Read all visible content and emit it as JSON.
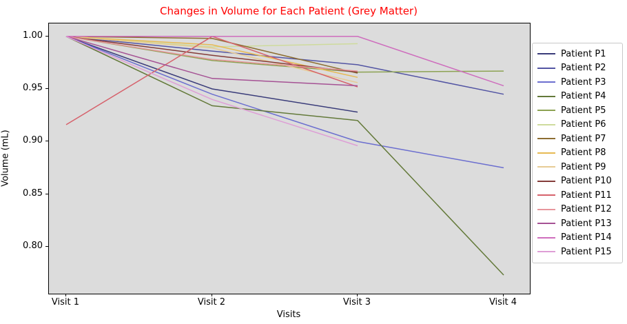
{
  "title": {
    "text": "Changes in Volume for Each Patient (Grey Matter)",
    "color": "#ff0000"
  },
  "axes": {
    "xlabel": "Visits",
    "ylabel": "Volume (mL)",
    "x_tick_labels": [
      "Visit 1",
      "Visit 2",
      "Visit 3",
      "Visit 4"
    ],
    "y_ticks": [
      {
        "label": "1.00",
        "value": 1.0
      },
      {
        "label": "0.95",
        "value": 0.95
      },
      {
        "label": "0.90",
        "value": 0.9
      },
      {
        "label": "0.85",
        "value": 0.85
      },
      {
        "label": "0.80",
        "value": 0.8
      }
    ]
  },
  "legend": {
    "items": [
      {
        "label": "Patient P1",
        "color": "#393b79"
      },
      {
        "label": "Patient P2",
        "color": "#5254a3"
      },
      {
        "label": "Patient P3",
        "color": "#6b6ecf"
      },
      {
        "label": "Patient P4",
        "color": "#637939"
      },
      {
        "label": "Patient P5",
        "color": "#8ca252"
      },
      {
        "label": "Patient P6",
        "color": "#cedb9c"
      },
      {
        "label": "Patient P7",
        "color": "#8c6d31"
      },
      {
        "label": "Patient P8",
        "color": "#e7ba52"
      },
      {
        "label": "Patient P9",
        "color": "#e7cb94"
      },
      {
        "label": "Patient P10",
        "color": "#843c39"
      },
      {
        "label": "Patient P11",
        "color": "#d6616b"
      },
      {
        "label": "Patient P12",
        "color": "#e7969c"
      },
      {
        "label": "Patient P13",
        "color": "#a55194"
      },
      {
        "label": "Patient P14",
        "color": "#ce6dbd"
      },
      {
        "label": "Patient P15",
        "color": "#de9ed6"
      }
    ]
  },
  "chart_data": {
    "type": "line",
    "title": "Changes in Volume for Each Patient (Grey Matter)",
    "xlabel": "Visits",
    "ylabel": "Volume (mL)",
    "categories": [
      "Visit 1",
      "Visit 2",
      "Visit 3",
      "Visit 4"
    ],
    "ylim": [
      0.7553,
      1.0123
    ],
    "plot_background": "#dcdcdc",
    "grid": false,
    "legend_position": "right",
    "line_width": 1.5,
    "series": [
      {
        "name": "Patient P1",
        "color": "#393b79",
        "values": [
          1.0,
          0.95,
          0.928,
          null
        ]
      },
      {
        "name": "Patient P2",
        "color": "#5254a3",
        "values": [
          1.0,
          0.986,
          0.973,
          0.945
        ]
      },
      {
        "name": "Patient P3",
        "color": "#6b6ecf",
        "values": [
          1.0,
          0.945,
          0.9,
          0.875
        ]
      },
      {
        "name": "Patient P4",
        "color": "#637939",
        "values": [
          1.0,
          0.934,
          0.92,
          0.773
        ]
      },
      {
        "name": "Patient P5",
        "color": "#8ca252",
        "values": [
          1.0,
          0.977,
          0.966,
          0.967
        ]
      },
      {
        "name": "Patient P6",
        "color": "#cedb9c",
        "values": [
          1.0,
          0.99,
          0.993,
          null
        ]
      },
      {
        "name": "Patient P7",
        "color": "#8c6d31",
        "values": [
          1.0,
          0.998,
          0.965,
          null
        ]
      },
      {
        "name": "Patient P8",
        "color": "#e7ba52",
        "values": [
          1.0,
          0.992,
          0.961,
          null
        ]
      },
      {
        "name": "Patient P9",
        "color": "#e7cb94",
        "values": [
          1.0,
          0.989,
          0.956,
          null
        ]
      },
      {
        "name": "Patient P10",
        "color": "#843c39",
        "values": [
          1.0,
          0.982,
          0.966,
          null
        ]
      },
      {
        "name": "Patient P11",
        "color": "#d6616b",
        "values": [
          0.916,
          1.0,
          0.952,
          null
        ]
      },
      {
        "name": "Patient P12",
        "color": "#e7969c",
        "values": [
          1.0,
          0.978,
          0.967,
          null
        ]
      },
      {
        "name": "Patient P13",
        "color": "#a55194",
        "values": [
          1.0,
          0.96,
          0.953,
          null
        ]
      },
      {
        "name": "Patient P14",
        "color": "#ce6dbd",
        "values": [
          1.0,
          1.0,
          1.0,
          0.953
        ]
      },
      {
        "name": "Patient P15",
        "color": "#de9ed6",
        "values": [
          1.0,
          0.94,
          0.896,
          null
        ]
      }
    ]
  }
}
